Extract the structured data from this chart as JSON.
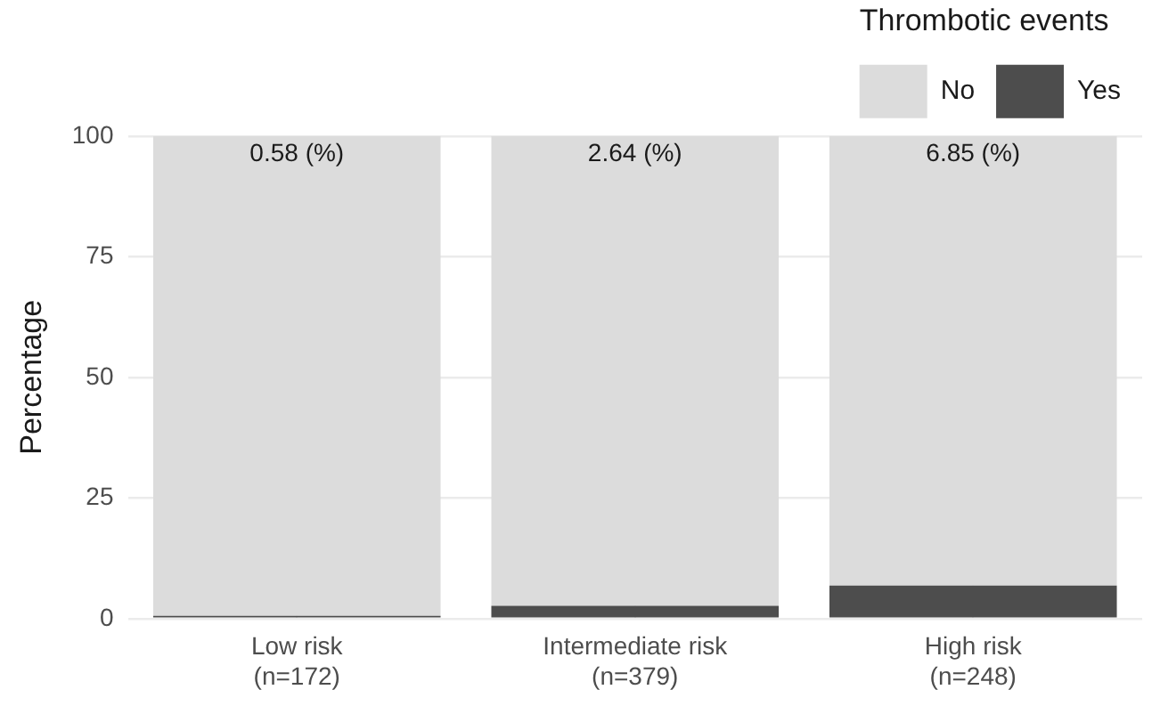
{
  "chart_data": {
    "type": "bar",
    "stacked": true,
    "ylabel": "Percentage",
    "legend_title": "Thrombotic events",
    "legend": "top",
    "categories": [
      "Low risk\n(n=172)",
      "Intermediate risk\n(n=379)",
      "High risk\n(n=248)"
    ],
    "series": [
      {
        "name": "Yes",
        "color": "#4d4d4d",
        "values": [
          0.58,
          2.64,
          6.85
        ]
      },
      {
        "name": "No",
        "color": "#dcdcdc",
        "values": [
          99.42,
          97.36,
          93.15
        ]
      }
    ],
    "ylim": [
      0,
      100
    ],
    "yticks": [
      0,
      25,
      50,
      75,
      100
    ],
    "grid": true,
    "annotations": [
      "0.58 (%)",
      "2.64 (%)",
      "6.85 (%)"
    ]
  }
}
